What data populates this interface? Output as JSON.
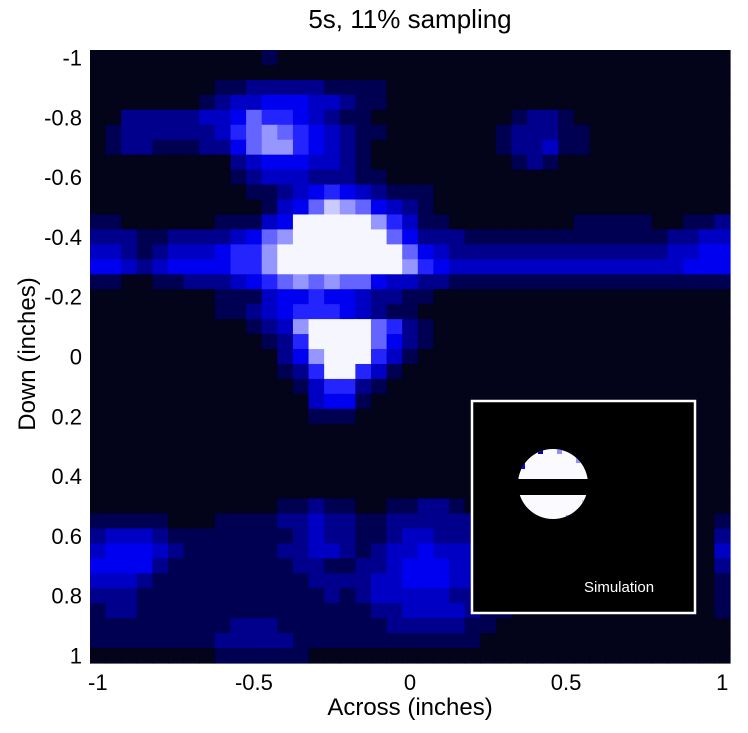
{
  "chart_data": {
    "type": "heatmap",
    "title": "5s, 11% sampling",
    "xlabel": "Across (inches)",
    "ylabel": "Down (inches)",
    "xlim": [
      -1,
      1
    ],
    "ylim": [
      -1,
      1
    ],
    "y_direction": "down",
    "grid": false,
    "x_ticks": [
      "-1",
      "-0.5",
      "0",
      "0.5",
      "1"
    ],
    "x_tick_values": [
      -1,
      -0.5,
      0,
      0.5,
      1
    ],
    "y_ticks": [
      "-1",
      "-0.8",
      "-0.6",
      "-0.4",
      "-0.2",
      "0",
      "0.2",
      "0.4",
      "0.6",
      "0.8",
      "1"
    ],
    "y_tick_values": [
      -1,
      -0.8,
      -0.6,
      -0.4,
      -0.2,
      0,
      0.2,
      0.4,
      0.6,
      0.8,
      1
    ],
    "grid_step": 0.05,
    "intensity_scale": "0 (black) to 9 (white)",
    "colormap": [
      "#03031a",
      "#000052",
      "#00008c",
      "#0000c4",
      "#0000f0",
      "#2424ff",
      "#6464ff",
      "#9696ff",
      "#cacaff",
      "#f6f6ff"
    ],
    "rows": [
      "00000000000100000000000000000000000000000",
      "00000000000000000000000000000000000000000",
      "00000000112222211110000000000000000000000",
      "00000001233444332110000000000000000000000",
      "00222223346554321100000000012210000000000",
      "01222222356765432110000000122211000000000",
      "01221112246775432100000000122311000000000",
      "00000000023444332100000000012100000000000",
      "00000000012333222110000000000000000000000",
      "00000000001123454321110000000000000000000",
      "00000000000134687643210000000000000000000",
      "11000000111349999975311000000001111100112",
      "22211222234679999996422211111111111112233",
      "33212333455799999999643222222222222223344",
      "44323444455799999999754333333333333333444",
      "11001122234567676643322111111111111111111",
      "00000000111344544322110000000000000000000",
      "00000000112345554321100000000000000000000",
      "00000000001237999965210000000000000000000",
      "00000000000125999964210000000000000000000",
      "00000000000024799953100000000000000000000",
      "00000000000012599531000000000000000000000",
      "00000000000001355210000000000000000000000",
      "00000000000000344100000000000000000000000",
      "00000000000000111000000000000000000000000",
      "00000000000000000000000000000000000000000",
      "00000000000000000000000000000000000000000",
      "00000000000000000000000000000000000000000",
      "00000000000000000000000000000000000000000",
      "00000000000000000000000000000000000000000",
      "00000000000011211001122100000000000000000",
      "11111000111122322112222221000000000000001",
      "23332111111112322112332222100000000000002",
      "34443211111122332123343332100000000000003",
      "44442111111112211223444332100000000000002",
      "33321111111111222233444332100000000000001",
      "22211111111111121233333222100000000000001",
      "12211111111111111122333321100000000000001",
      "11111111122211111112222211000000000000000",
      "11111111222221111111111110000000000000000",
      "00000000111111000000000000000000000000000"
    ],
    "inset": {
      "label": "Simulation",
      "background": "#000000",
      "border": "#ffffff"
    }
  }
}
